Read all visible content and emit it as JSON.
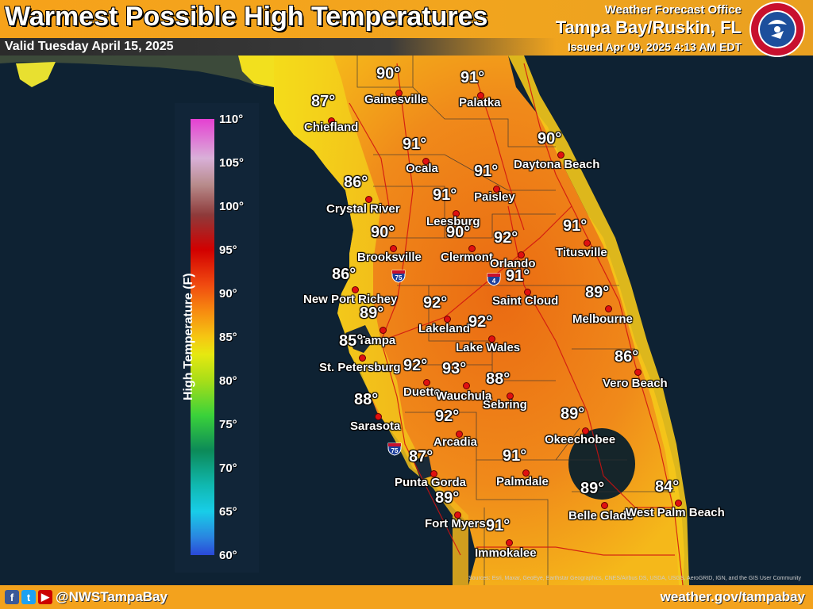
{
  "header": {
    "title": "Warmest Possible High Temperatures",
    "valid": "Valid Tuesday April 15, 2025",
    "wfo": "Weather Forecast Office",
    "office": "Tampa Bay/Ruskin, FL",
    "issued": "Issued Apr 09, 2025 4:13 AM EDT"
  },
  "legend": {
    "title": "High Temperature (F)",
    "ticks": [
      "110°",
      "105°",
      "100°",
      "95°",
      "90°",
      "85°",
      "80°",
      "75°",
      "70°",
      "65°",
      "60°"
    ]
  },
  "interstate_label": "75",
  "interstate4_label": "4",
  "cities": [
    {
      "name": "Gainesville",
      "temp": "90°"
    },
    {
      "name": "Palatka",
      "temp": "91°"
    },
    {
      "name": "Chiefland",
      "temp": "87°"
    },
    {
      "name": "Ocala",
      "temp": "91°"
    },
    {
      "name": "Daytona Beach",
      "temp": "90°"
    },
    {
      "name": "Paisley",
      "temp": "91°"
    },
    {
      "name": "Crystal River",
      "temp": "86°"
    },
    {
      "name": "Leesburg",
      "temp": "91°"
    },
    {
      "name": "Brooksville",
      "temp": "90°"
    },
    {
      "name": "Clermont",
      "temp": "90°"
    },
    {
      "name": "Orlando",
      "temp": "92°"
    },
    {
      "name": "Titusville",
      "temp": "91°"
    },
    {
      "name": "New Port Richey",
      "temp": "86°"
    },
    {
      "name": "Saint Cloud",
      "temp": "91°"
    },
    {
      "name": "Lakeland",
      "temp": "92°"
    },
    {
      "name": "Melbourne",
      "temp": "89°"
    },
    {
      "name": "Tampa",
      "temp": "89°"
    },
    {
      "name": "Lake Wales",
      "temp": "92°"
    },
    {
      "name": "St. Petersburg",
      "temp": "85°"
    },
    {
      "name": "Duette",
      "temp": "92°"
    },
    {
      "name": "Wauchula",
      "temp": "93°"
    },
    {
      "name": "Sebring",
      "temp": "88°"
    },
    {
      "name": "Vero Beach",
      "temp": "86°"
    },
    {
      "name": "Sarasota",
      "temp": "88°"
    },
    {
      "name": "Arcadia",
      "temp": "92°"
    },
    {
      "name": "Okeechobee",
      "temp": "89°"
    },
    {
      "name": "Punta Gorda",
      "temp": "87°"
    },
    {
      "name": "Palmdale",
      "temp": "91°"
    },
    {
      "name": "Fort Myers",
      "temp": "89°"
    },
    {
      "name": "Belle Glade",
      "temp": "89°"
    },
    {
      "name": "West Palm Beach",
      "temp": "84°"
    },
    {
      "name": "Immokalee",
      "temp": "91°"
    }
  ],
  "attribution": "Sources: Esri, Maxar, GeoEye, Earthstar Geographics, CNES/Airbus DS, USDA, USGS, AeroGRID, IGN, and the GIS User Community",
  "footer": {
    "handle": "@NWSTampaBay",
    "site": "weather.gov/tampabay",
    "social_icons": [
      "facebook-icon",
      "twitter-icon",
      "youtube-icon"
    ]
  },
  "colors": {
    "header_orange": "#f3a21d",
    "dot_red": "#e01010",
    "land_orange": "#f08a1a",
    "ocean": "#0e2233"
  }
}
